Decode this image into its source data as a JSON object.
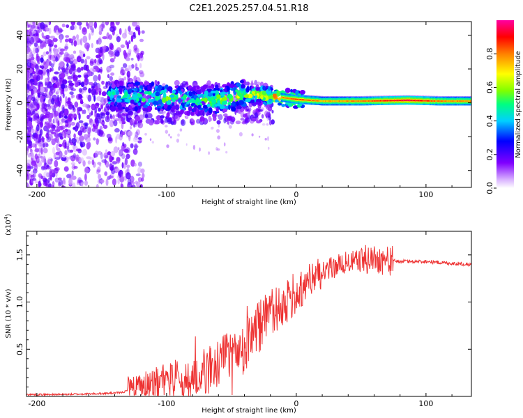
{
  "title": "C2E1.2025.257.04.51.R18",
  "chart_data": [
    {
      "type": "heatmap",
      "title": "C2E1.2025.257.04.51.R18",
      "xlabel": "Height of straight line (km)",
      "ylabel": "Frequency (Hz)",
      "xlim": [
        -208,
        135
      ],
      "ylim": [
        -50,
        48
      ],
      "xticks": [
        -200,
        -100,
        0,
        100
      ],
      "yticks": [
        -40,
        -20,
        0,
        20,
        40
      ],
      "colorbar": {
        "label": "Normalized spectral amplitude",
        "range": [
          0.0,
          1.0
        ],
        "ticks": [
          0.0,
          0.2,
          0.4,
          0.6,
          0.8
        ],
        "tick_labels": [
          "0.0",
          "0.2",
          "0.4",
          "0.6",
          "0.8"
        ],
        "colormap": [
          "#ffffff",
          "#d9b3ff",
          "#8000ff",
          "#0000ff",
          "#00d0ff",
          "#00ff80",
          "#80ff00",
          "#ffff00",
          "#ff8000",
          "#ff0000",
          "#ff00a0"
        ]
      },
      "ridge": [
        {
          "x": -145,
          "freq": 4.0,
          "amp": 0.45
        },
        {
          "x": -120,
          "freq": 4.0,
          "amp": 0.5
        },
        {
          "x": -100,
          "freq": 3.0,
          "amp": 0.5
        },
        {
          "x": -80,
          "freq": 1.0,
          "amp": 0.5
        },
        {
          "x": -60,
          "freq": 2.0,
          "amp": 0.55
        },
        {
          "x": -40,
          "freq": 5.0,
          "amp": 0.6
        },
        {
          "x": -20,
          "freq": 4.0,
          "amp": 0.75
        },
        {
          "x": 0,
          "freq": 2.0,
          "amp": 0.85
        },
        {
          "x": 20,
          "freq": 1.0,
          "amp": 0.75
        },
        {
          "x": 50,
          "freq": 1.0,
          "amp": 0.8
        },
        {
          "x": 85,
          "freq": 1.5,
          "amp": 0.95
        },
        {
          "x": 110,
          "freq": 1.0,
          "amp": 0.8
        },
        {
          "x": 135,
          "freq": 1.0,
          "amp": 0.78
        }
      ]
    },
    {
      "type": "line",
      "xlabel": "Height of straight line (km)",
      "ylabel": "SNR (10 * v/v)",
      "y_multiplier": "(x10",
      "y_multiplier_exp": "4",
      "y_multiplier_close": ")",
      "xlim": [
        -208,
        135
      ],
      "ylim": [
        0.0,
        1.75
      ],
      "xticks": [
        -200,
        -100,
        0,
        100
      ],
      "yticks": [
        0.5,
        1.0,
        1.5
      ],
      "ytick_labels": [
        "0.5",
        "1.0",
        "1.5"
      ],
      "series": [
        {
          "name": "SNR",
          "color": "#ee3333",
          "x": [
            -208,
            -180,
            -150,
            -135,
            -120,
            -100,
            -80,
            -65,
            -50,
            -35,
            -25,
            -15,
            0,
            10,
            20,
            30,
            40,
            50,
            60,
            65,
            70,
            80,
            90,
            100,
            110,
            120,
            135
          ],
          "y": [
            0.02,
            0.02,
            0.03,
            0.04,
            0.1,
            0.15,
            0.22,
            0.3,
            0.42,
            0.62,
            0.78,
            0.92,
            1.1,
            1.22,
            1.3,
            1.38,
            1.42,
            1.44,
            1.46,
            1.45,
            1.44,
            1.43,
            1.43,
            1.43,
            1.42,
            1.41,
            1.4
          ]
        }
      ]
    }
  ]
}
